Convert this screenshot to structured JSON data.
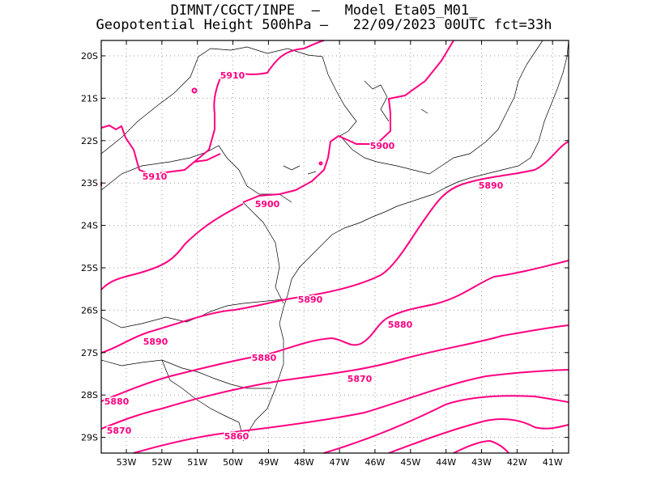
{
  "header": {
    "line1": "DIMNT/CGCT/INPE  –   Model Eta05_M01_",
    "line2": "Geopotential Height 500hPa –   22/09/2023 00UTC fct=33h"
  },
  "axes": {
    "lat_ticks": [
      "20S",
      "21S",
      "22S",
      "23S",
      "24S",
      "25S",
      "26S",
      "27S",
      "28S",
      "29S"
    ],
    "lon_ticks": [
      "53W",
      "52W",
      "51W",
      "50W",
      "49W",
      "48W",
      "47W",
      "46W",
      "45W",
      "44W",
      "43W",
      "42W",
      "41W"
    ]
  },
  "colors": {
    "contour": "#ff0080",
    "coast": "#000000",
    "grid": "#999999"
  },
  "contour_labels": [
    {
      "text": "5910"
    },
    {
      "text": "5910"
    },
    {
      "text": "5900"
    },
    {
      "text": "5900"
    },
    {
      "text": "5890"
    },
    {
      "text": "5890"
    },
    {
      "text": "5890"
    },
    {
      "text": "5880"
    },
    {
      "text": "5880"
    },
    {
      "text": "5880"
    },
    {
      "text": "5870"
    },
    {
      "text": "5870"
    },
    {
      "text": "5860"
    }
  ]
}
